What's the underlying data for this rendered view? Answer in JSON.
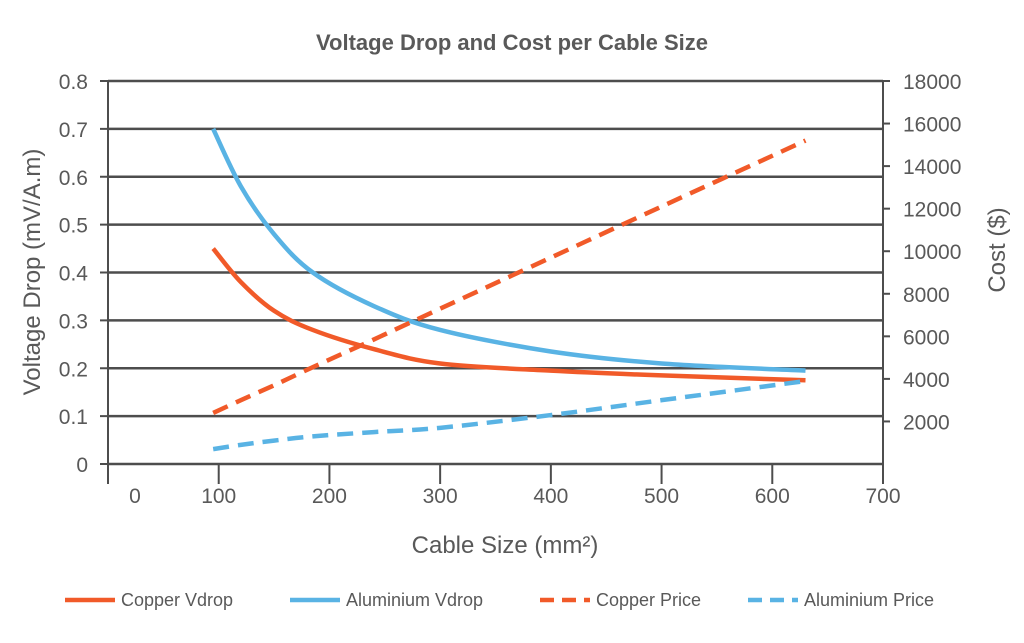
{
  "chart_data": {
    "type": "line",
    "title": "Voltage Drop and Cost per Cable Size",
    "xlabel": "Cable Size (mm²)",
    "ylabel": "Voltage Drop (mV/A.m)",
    "y2label": "Cost ($)",
    "xlim": [
      0,
      700
    ],
    "ylim": [
      0,
      0.8
    ],
    "y2lim": [
      0,
      18000
    ],
    "xticks": [
      "0",
      "100",
      "200",
      "300",
      "400",
      "500",
      "600",
      "700"
    ],
    "yticks": [
      "0",
      "0.1",
      "0.2",
      "0.3",
      "0.4",
      "0.5",
      "0.6",
      "0.7",
      "0.8"
    ],
    "y2ticks": [
      "2000",
      "4000",
      "6000",
      "8000",
      "10000",
      "12000",
      "14000",
      "16000",
      "18000"
    ],
    "grid": true,
    "legend_position": "bottom",
    "x": [
      95,
      120,
      150,
      185,
      240,
      300,
      400,
      500,
      630
    ],
    "series": [
      {
        "name": "Copper Vdrop",
        "axis": "left",
        "style": "solid",
        "color": "#f15a29",
        "values": [
          0.45,
          0.38,
          0.32,
          0.28,
          0.24,
          0.21,
          0.195,
          0.185,
          0.175
        ]
      },
      {
        "name": "Aluminium Vdrop",
        "axis": "left",
        "style": "solid",
        "color": "#59b3e4",
        "values": [
          0.7,
          0.58,
          0.48,
          0.4,
          0.33,
          0.28,
          0.235,
          0.21,
          0.195
        ]
      },
      {
        "name": "Copper Price",
        "axis": "right",
        "style": "dashed",
        "color": "#f15a29",
        "values": [
          2400,
          3000,
          3700,
          4550,
          5850,
          7300,
          9700,
          12100,
          15200
        ]
      },
      {
        "name": "Aluminium Price",
        "axis": "right",
        "style": "dashed",
        "color": "#59b3e4",
        "values": [
          700,
          900,
          1100,
          1300,
          1500,
          1700,
          2300,
          3000,
          3900
        ]
      }
    ]
  }
}
